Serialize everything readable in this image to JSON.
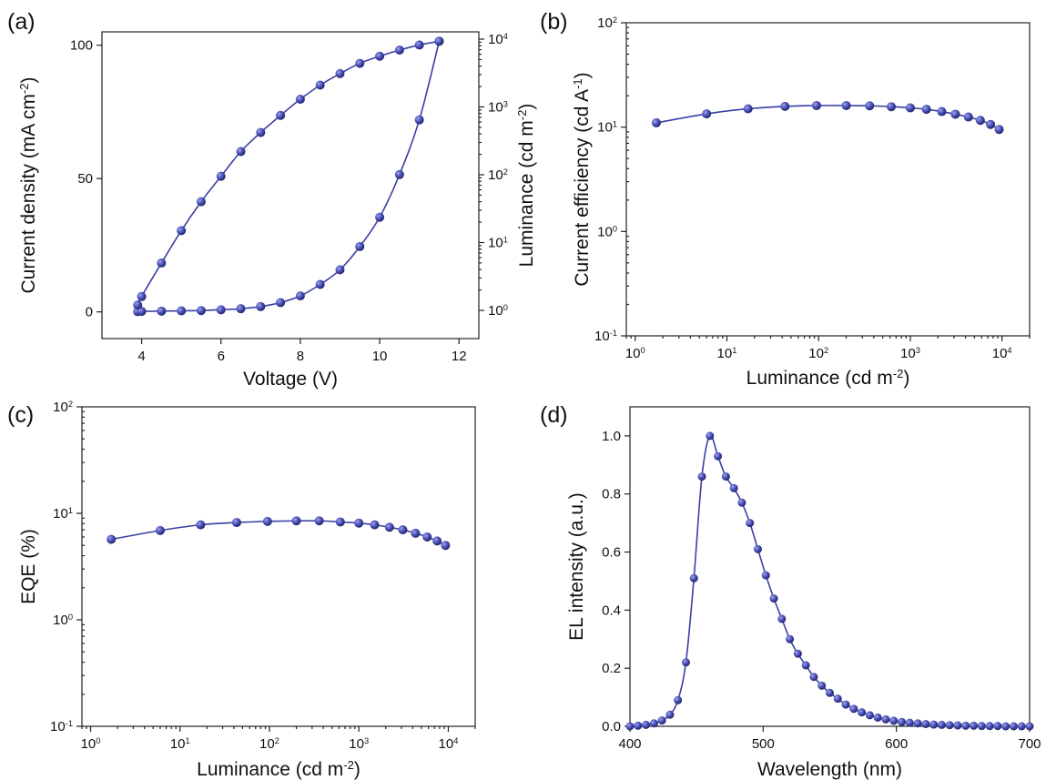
{
  "colors": {
    "series": "#3a3fa6",
    "marker": "#4a50b8",
    "marker_highlight": "#9fa4e6",
    "axis": "#222222"
  },
  "chart_data": [
    {
      "id": "a",
      "panel_label": "(a)",
      "type": "line",
      "xlabel": "Voltage (V)",
      "xlim": [
        3,
        12.5
      ],
      "xticks": [
        4,
        6,
        8,
        10,
        12
      ],
      "y_left": {
        "label": "Current density (mA cm",
        "label_sup": "-2",
        "label_tail": ")",
        "lim": [
          -10,
          105
        ],
        "ticks": [
          0,
          50,
          100
        ]
      },
      "y_right": {
        "label": "Luminance (cd m",
        "label_sup": "-2",
        "label_tail": ")",
        "scale": "log",
        "ticks": [
          1,
          10,
          100,
          1000,
          10000
        ],
        "tick_labels": [
          [
            "10",
            "0"
          ],
          [
            "10",
            "1"
          ],
          [
            "10",
            "2"
          ],
          [
            "10",
            "3"
          ],
          [
            "10",
            "4"
          ]
        ]
      },
      "series": [
        {
          "axis": "left",
          "x": [
            3.9,
            4.0,
            4.5,
            5.0,
            5.5,
            6.0,
            6.5,
            7.0,
            7.5,
            8.0,
            8.5,
            9.0,
            9.5,
            10.0,
            10.5,
            11.0,
            11.5
          ],
          "values": [
            0.1,
            0.2,
            0.3,
            0.4,
            0.5,
            0.8,
            1.2,
            2.0,
            3.5,
            6.0,
            10.3,
            15.8,
            24.5,
            35.5,
            51.5,
            72.0,
            101.5
          ]
        },
        {
          "axis": "right",
          "x": [
            3.9,
            4.0,
            4.5,
            5.0,
            5.5,
            6.0,
            6.5,
            7.0,
            7.5,
            8.0,
            8.5,
            9.0,
            9.5,
            10.0,
            10.5,
            11.0,
            11.5
          ],
          "values": [
            1.2,
            1.6,
            5.0,
            15,
            40,
            95,
            220,
            420,
            750,
            1300,
            2100,
            3100,
            4400,
            5600,
            6900,
            8200,
            9300
          ]
        }
      ]
    },
    {
      "id": "b",
      "panel_label": "(b)",
      "type": "line",
      "xlabel": "Luminance (cd m",
      "xlabel_sup": "-2",
      "xlabel_tail": ")",
      "xscale": "log",
      "xlim": [
        0.8,
        20000
      ],
      "xticks": [
        1,
        10,
        100,
        1000,
        10000
      ],
      "xtick_labels": [
        [
          "10",
          "0"
        ],
        [
          "10",
          "1"
        ],
        [
          "10",
          "2"
        ],
        [
          "10",
          "3"
        ],
        [
          "10",
          "4"
        ]
      ],
      "ylabel": "Current efficiency (cd A",
      "ylabel_sup": "-1",
      "ylabel_tail": ")",
      "yscale": "log",
      "ylim": [
        0.1,
        100
      ],
      "yticks": [
        0.1,
        1,
        10,
        100
      ],
      "ytick_labels": [
        [
          "10",
          "-1"
        ],
        [
          "10",
          "0"
        ],
        [
          "10",
          "1"
        ],
        [
          "10",
          "2"
        ]
      ],
      "series": [
        {
          "x": [
            1.7,
            6,
            17,
            43,
            95,
            200,
            360,
            620,
            1000,
            1500,
            2200,
            3100,
            4300,
            5800,
            7500,
            9300
          ],
          "values": [
            11.0,
            13.4,
            15.0,
            15.8,
            16.1,
            16.1,
            16.0,
            15.7,
            15.3,
            14.8,
            14.1,
            13.3,
            12.5,
            11.6,
            10.6,
            9.5
          ]
        }
      ]
    },
    {
      "id": "c",
      "panel_label": "(c)",
      "type": "line",
      "xlabel": "Luminance (cd m",
      "xlabel_sup": "-2",
      "xlabel_tail": ")",
      "xscale": "log",
      "xlim": [
        0.8,
        20000
      ],
      "xticks": [
        1,
        10,
        100,
        1000,
        10000
      ],
      "xtick_labels": [
        [
          "10",
          "0"
        ],
        [
          "10",
          "1"
        ],
        [
          "10",
          "2"
        ],
        [
          "10",
          "3"
        ],
        [
          "10",
          "4"
        ]
      ],
      "ylabel": "EQE (%)",
      "yscale": "log",
      "ylim": [
        0.1,
        100
      ],
      "yticks": [
        0.1,
        1,
        10,
        100
      ],
      "ytick_labels": [
        [
          "10",
          "-1"
        ],
        [
          "10",
          "0"
        ],
        [
          "10",
          "1"
        ],
        [
          "10",
          "2"
        ]
      ],
      "series": [
        {
          "x": [
            1.7,
            6,
            17,
            43,
            95,
            200,
            360,
            620,
            1000,
            1500,
            2200,
            3100,
            4300,
            5800,
            7500,
            9300
          ],
          "values": [
            5.7,
            6.9,
            7.8,
            8.2,
            8.4,
            8.5,
            8.5,
            8.3,
            8.1,
            7.8,
            7.4,
            7.0,
            6.5,
            6.0,
            5.5,
            5.0
          ]
        }
      ]
    },
    {
      "id": "d",
      "panel_label": "(d)",
      "type": "line",
      "xlabel": "Wavelength (nm)",
      "xlim": [
        400,
        700
      ],
      "xticks": [
        400,
        500,
        600,
        700
      ],
      "ylabel": "EL intensity (a.u.)",
      "ylim": [
        0,
        1.1
      ],
      "yticks": [
        0.0,
        0.2,
        0.4,
        0.6,
        0.8,
        1.0
      ],
      "ytick_labels": [
        "0.0",
        "0.2",
        "0.4",
        "0.6",
        "0.8",
        "1.0"
      ],
      "series": [
        {
          "x": [
            400,
            406,
            412,
            418,
            424,
            430,
            436,
            442,
            448,
            454,
            460,
            466,
            472,
            478,
            484,
            490,
            496,
            502,
            508,
            514,
            520,
            526,
            532,
            538,
            544,
            550,
            556,
            562,
            568,
            574,
            580,
            586,
            592,
            598,
            604,
            610,
            616,
            622,
            628,
            634,
            640,
            646,
            652,
            658,
            664,
            670,
            676,
            682,
            688,
            694,
            700
          ],
          "values": [
            0.0,
            0.002,
            0.005,
            0.01,
            0.02,
            0.04,
            0.09,
            0.22,
            0.51,
            0.86,
            1.0,
            0.93,
            0.86,
            0.82,
            0.77,
            0.7,
            0.61,
            0.52,
            0.44,
            0.37,
            0.3,
            0.25,
            0.21,
            0.17,
            0.14,
            0.115,
            0.095,
            0.075,
            0.06,
            0.048,
            0.038,
            0.03,
            0.024,
            0.019,
            0.015,
            0.012,
            0.01,
            0.008,
            0.006,
            0.005,
            0.004,
            0.003,
            0.002,
            0.002,
            0.001,
            0.001,
            0.001,
            0.0,
            0.0,
            0.0,
            0.0
          ]
        }
      ]
    }
  ]
}
